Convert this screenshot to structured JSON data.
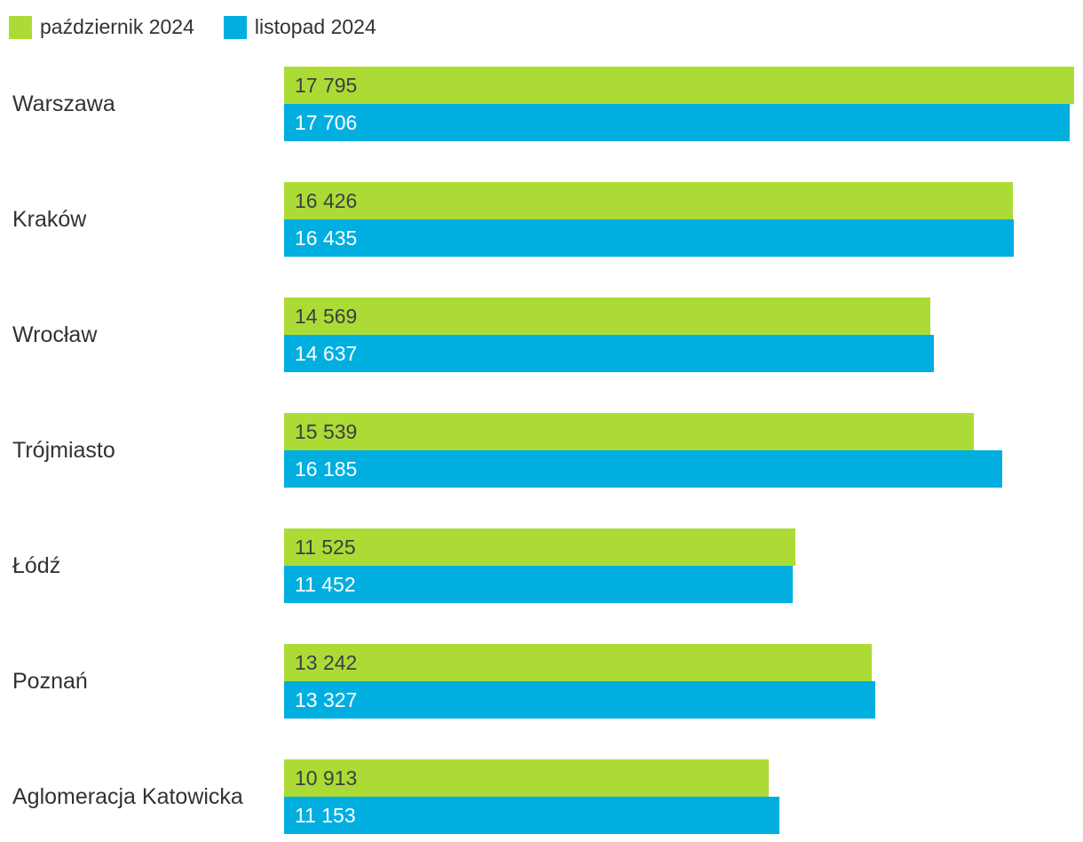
{
  "chart_data": {
    "type": "bar",
    "orientation": "horizontal",
    "title": "",
    "xlabel": "",
    "ylabel": "",
    "grid": false,
    "axes_visible": false,
    "legend_position": "top-left",
    "value_label_position": "inside-start",
    "xlim": [
      0,
      18000
    ],
    "categories": [
      "Warszawa",
      "Kraków",
      "Wrocław",
      "Trójmiasto",
      "Łódź",
      "Poznań",
      "Aglomeracja Katowicka"
    ],
    "series": [
      {
        "name": "październik 2024",
        "color": "#addb36",
        "label_color": "#3c4043",
        "values": [
          17795,
          16426,
          14569,
          15539,
          11525,
          13242,
          10913
        ],
        "value_labels": [
          "17 795",
          "16 426",
          "14 569",
          "15 539",
          "11 525",
          "13 242",
          "10 913"
        ]
      },
      {
        "name": "listopad 2024",
        "color": "#00afdf",
        "label_color": "#ffffff",
        "values": [
          17706,
          16435,
          14637,
          16185,
          11452,
          13327,
          11153
        ],
        "value_labels": [
          "17 706",
          "16 435",
          "14 637",
          "16 185",
          "11 452",
          "13 327",
          "11 153"
        ]
      }
    ]
  }
}
